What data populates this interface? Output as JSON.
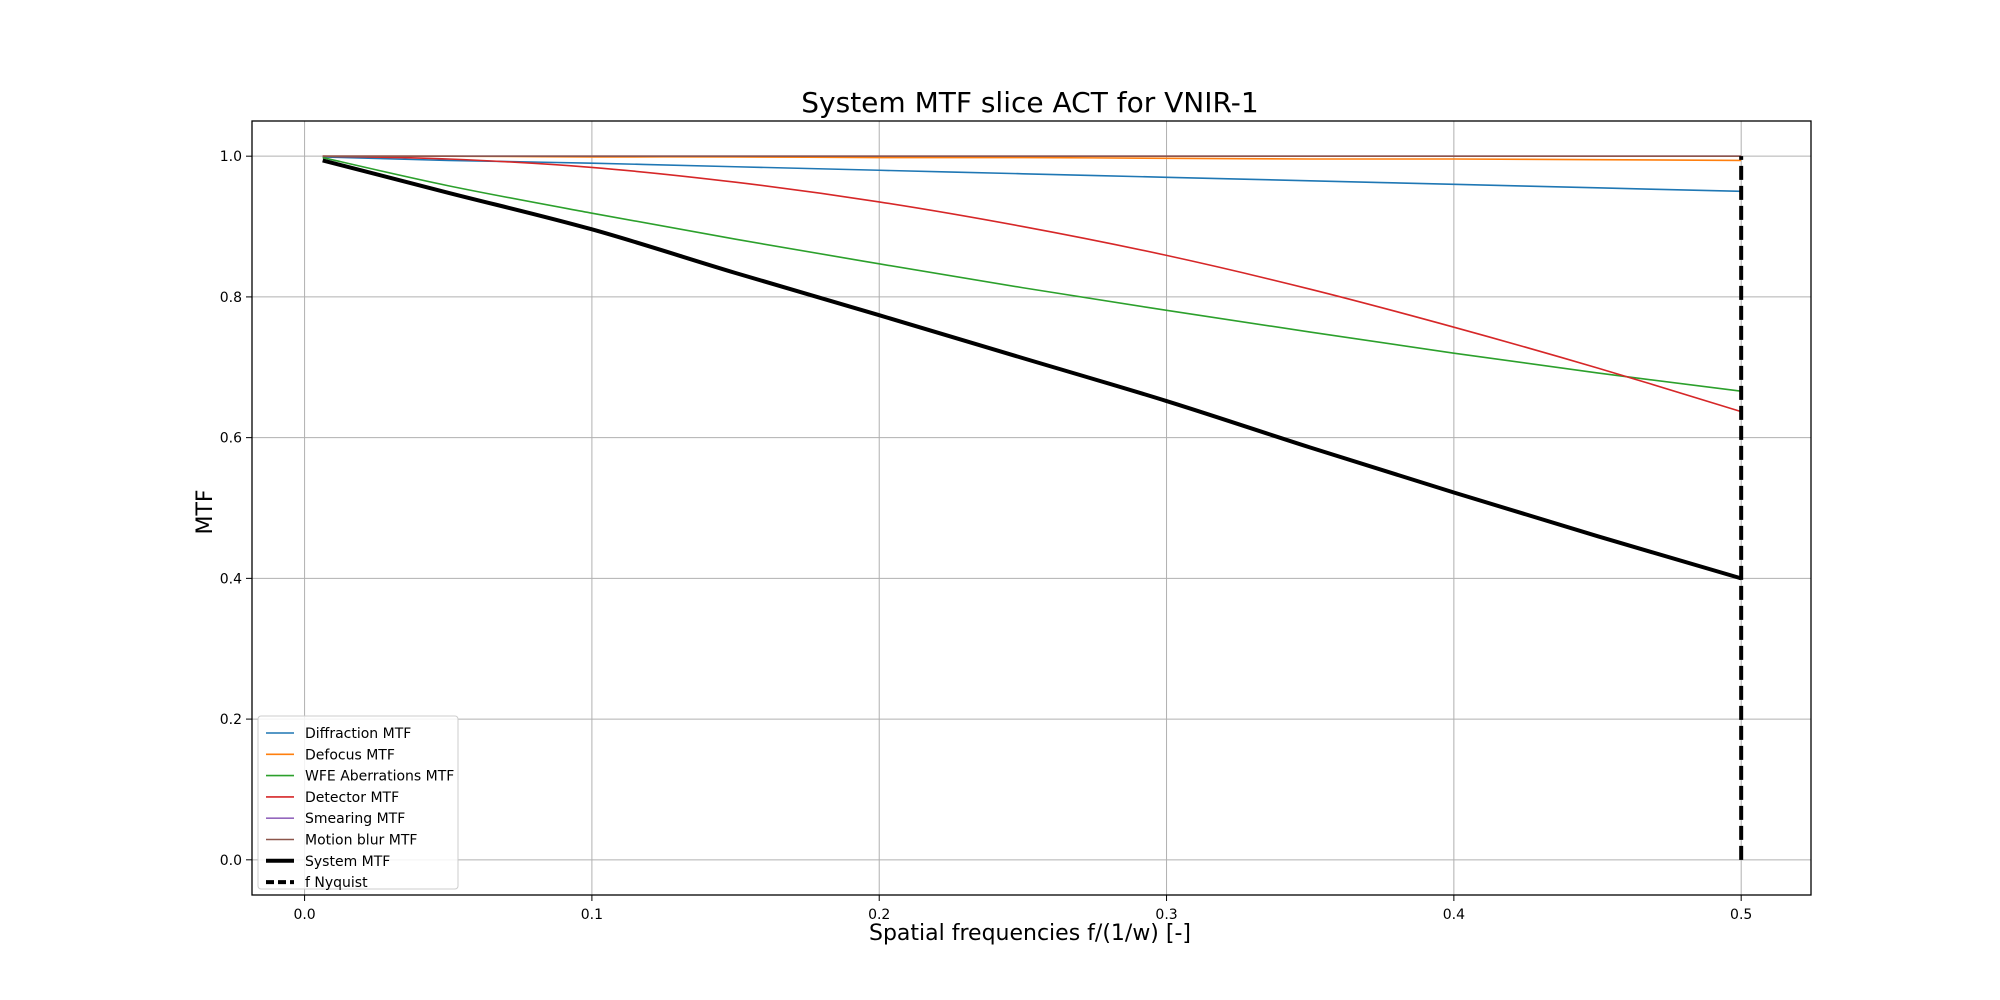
{
  "chart_data": {
    "type": "line",
    "title": "System MTF slice ACT for VNIR-1",
    "xlabel": "Spatial frequencies f/(1/w) [-]",
    "ylabel": "MTF",
    "xlim": [
      -0.0183,
      0.5243
    ],
    "ylim": [
      -0.05,
      1.05
    ],
    "xticks": [
      0.0,
      0.1,
      0.2,
      0.3,
      0.4,
      0.5
    ],
    "xtick_labels": [
      "0.0",
      "0.1",
      "0.2",
      "0.3",
      "0.4",
      "0.5"
    ],
    "yticks": [
      0.0,
      0.2,
      0.4,
      0.6,
      0.8,
      1.0
    ],
    "ytick_labels": [
      "0.0",
      "0.2",
      "0.4",
      "0.6",
      "0.8",
      "1.0"
    ],
    "grid": true,
    "legend_location": "lower-left",
    "x": [
      0.0063,
      0.05,
      0.1,
      0.15,
      0.2,
      0.25,
      0.3,
      0.35,
      0.4,
      0.45,
      0.5
    ],
    "series": [
      {
        "name": "Diffraction MTF",
        "color": "#1f77b4",
        "style": "solid",
        "width": 1.6,
        "values": [
          0.999,
          0.994,
          0.99,
          0.985,
          0.98,
          0.975,
          0.97,
          0.965,
          0.96,
          0.955,
          0.95
        ]
      },
      {
        "name": "Defocus MTF",
        "color": "#ff7f0e",
        "style": "solid",
        "width": 1.6,
        "values": [
          1.0,
          1.0,
          0.999,
          0.999,
          0.998,
          0.998,
          0.997,
          0.996,
          0.996,
          0.995,
          0.994
        ]
      },
      {
        "name": "WFE Aberrations MTF",
        "color": "#2ca02c",
        "style": "solid",
        "width": 1.6,
        "values": [
          0.998,
          0.958,
          0.919,
          0.882,
          0.847,
          0.813,
          0.781,
          0.75,
          0.72,
          0.692,
          0.666
        ]
      },
      {
        "name": "Detector MTF",
        "color": "#d62728",
        "style": "solid",
        "width": 1.6,
        "values": [
          1.0,
          0.996,
          0.984,
          0.963,
          0.935,
          0.9,
          0.859,
          0.811,
          0.757,
          0.699,
          0.637
        ]
      },
      {
        "name": "Smearing MTF",
        "color": "#9467bd",
        "style": "solid",
        "width": 1.6,
        "values": [
          1.0,
          1.0,
          1.0,
          1.0,
          1.0,
          1.0,
          1.0,
          1.0,
          1.0,
          1.0,
          1.0
        ]
      },
      {
        "name": "Motion blur MTF",
        "color": "#8c564b",
        "style": "solid",
        "width": 1.6,
        "values": [
          1.0,
          1.0,
          1.0,
          1.0,
          1.0,
          1.0,
          1.0,
          1.0,
          1.0,
          1.0,
          1.0
        ]
      },
      {
        "name": "System MTF",
        "color": "#000000",
        "style": "solid",
        "width": 4,
        "values": [
          0.994,
          0.948,
          0.896,
          0.834,
          0.774,
          0.713,
          0.652,
          0.586,
          0.522,
          0.46,
          0.4
        ]
      }
    ],
    "vline": {
      "name": "f Nyquist",
      "x": 0.5,
      "y_range": [
        0.0,
        1.0
      ],
      "color": "#000000",
      "style": "dashed",
      "width": 4
    }
  }
}
